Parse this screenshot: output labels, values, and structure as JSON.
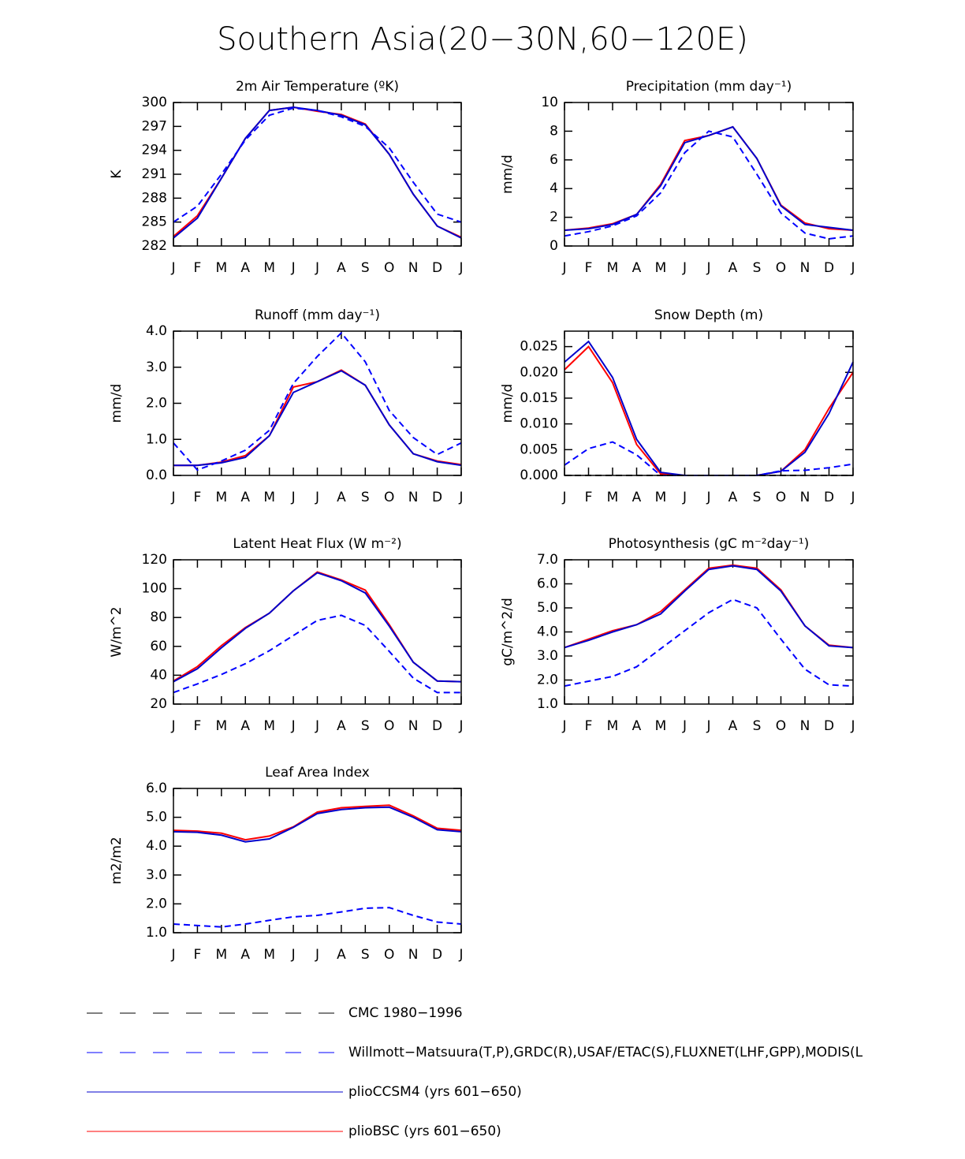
{
  "title": "Southern Asia(20−30N,60−120E)",
  "chart_data": [
    {
      "type": "line",
      "title": "2m Air Temperature (ºK)",
      "ylabel": "K",
      "categories": [
        "J",
        "F",
        "M",
        "A",
        "M",
        "J",
        "J",
        "A",
        "S",
        "O",
        "N",
        "D",
        "J"
      ],
      "ylim": [
        282,
        300
      ],
      "yticks": [
        282,
        285,
        288,
        291,
        294,
        297,
        300
      ],
      "series": [
        {
          "name": "Willmott−Matsuura(T,P),GRDC(R),USAF/ETAC(S),FLUXNET(LHF,GPP),MODIS(L",
          "color": "#0000ff",
          "dash": true,
          "values": [
            285,
            287,
            291,
            295.3,
            298.4,
            299.3,
            299,
            298.2,
            297,
            294.3,
            290,
            286,
            285
          ]
        },
        {
          "name": "plioCCSM4 (yrs 601−650)",
          "color": "#0000cc",
          "dash": false,
          "values": [
            283,
            285.5,
            290.5,
            295.5,
            299,
            299.4,
            299,
            298.4,
            297.2,
            293.5,
            288.5,
            284.5,
            283
          ]
        },
        {
          "name": "plioBSC (yrs 601−650)",
          "color": "#ff0000",
          "dash": false,
          "values": [
            283.2,
            285.8,
            290.5,
            295.5,
            299,
            299.4,
            298.9,
            298.5,
            297.3,
            293.5,
            288.5,
            284.5,
            283.1
          ]
        }
      ]
    },
    {
      "type": "line",
      "title": "Precipitation (mm day⁻¹)",
      "ylabel": "mm/d",
      "categories": [
        "J",
        "F",
        "M",
        "A",
        "M",
        "J",
        "J",
        "A",
        "S",
        "O",
        "N",
        "D",
        "J"
      ],
      "ylim": [
        0,
        10
      ],
      "yticks": [
        0,
        2,
        4,
        6,
        8,
        10
      ],
      "series": [
        {
          "name": "Willmott−Matsuura(T,P),GRDC(R),USAF/ETAC(S),FLUXNET(LHF,GPP),MODIS(L",
          "color": "#0000ff",
          "dash": true,
          "values": [
            0.7,
            1.0,
            1.4,
            2.1,
            3.7,
            6.5,
            8.0,
            7.6,
            5.0,
            2.3,
            0.9,
            0.5,
            0.7
          ]
        },
        {
          "name": "plioCCSM4 (yrs 601−650)",
          "color": "#0000cc",
          "dash": false,
          "values": [
            1.1,
            1.2,
            1.5,
            2.2,
            4.2,
            7.2,
            7.7,
            8.3,
            6.1,
            2.8,
            1.5,
            1.3,
            1.1
          ]
        },
        {
          "name": "plioBSC (yrs 601−650)",
          "color": "#ff0000",
          "dash": false,
          "values": [
            1.1,
            1.25,
            1.55,
            2.2,
            4.3,
            7.35,
            7.7,
            8.3,
            6.1,
            2.85,
            1.6,
            1.2,
            1.1
          ]
        }
      ]
    },
    {
      "type": "line",
      "title": "Runoff (mm day⁻¹)",
      "ylabel": "mm/d",
      "categories": [
        "J",
        "F",
        "M",
        "A",
        "M",
        "J",
        "J",
        "A",
        "S",
        "O",
        "N",
        "D",
        "J"
      ],
      "ylim": [
        0,
        4
      ],
      "yticks": [
        {
          "value": 0,
          "label": "0.0"
        },
        {
          "value": 1,
          "label": "1.0"
        },
        {
          "value": 2,
          "label": "2.0"
        },
        {
          "value": 3,
          "label": "3.0"
        },
        {
          "value": 4,
          "label": "4.0"
        }
      ],
      "series": [
        {
          "name": "Willmott−Matsuura(T,P),GRDC(R),USAF/ETAC(S),FLUXNET(LHF,GPP),MODIS(L",
          "color": "#0000ff",
          "dash": true,
          "values": [
            0.9,
            0.15,
            0.4,
            0.7,
            1.25,
            2.55,
            3.3,
            3.95,
            3.15,
            1.8,
            1.05,
            0.58,
            0.9
          ]
        },
        {
          "name": "plioCCSM4 (yrs 601−650)",
          "color": "#0000cc",
          "dash": false,
          "values": [
            0.28,
            0.28,
            0.35,
            0.5,
            1.1,
            2.3,
            2.6,
            2.9,
            2.5,
            1.4,
            0.6,
            0.38,
            0.28
          ]
        },
        {
          "name": "plioBSC (yrs 601−650)",
          "color": "#ff0000",
          "dash": false,
          "values": [
            0.28,
            0.28,
            0.37,
            0.55,
            1.1,
            2.45,
            2.6,
            2.92,
            2.5,
            1.4,
            0.6,
            0.4,
            0.3
          ]
        }
      ]
    },
    {
      "type": "line",
      "title": "Snow Depth (m)",
      "ylabel": "mm/d",
      "categories": [
        "J",
        "F",
        "M",
        "A",
        "M",
        "J",
        "J",
        "A",
        "S",
        "O",
        "N",
        "D",
        "J"
      ],
      "ylim": [
        0,
        0.028
      ],
      "yticks": [
        {
          "value": 0,
          "label": "0.000"
        },
        {
          "value": 0.005,
          "label": "0.005"
        },
        {
          "value": 0.01,
          "label": "0.010"
        },
        {
          "value": 0.015,
          "label": "0.015"
        },
        {
          "value": 0.02,
          "label": "0.020"
        },
        {
          "value": 0.025,
          "label": "0.025"
        }
      ],
      "series": [
        {
          "name": "CMC 1980−1996",
          "color": "#000000",
          "dash": true,
          "values": [
            0,
            0,
            0,
            0,
            0,
            0,
            0,
            0,
            0,
            0,
            0,
            0,
            0
          ]
        },
        {
          "name": "Willmott−Matsuura(T,P),GRDC(R),USAF/ETAC(S),FLUXNET(LHF,GPP),MODIS(L",
          "color": "#0000ff",
          "dash": true,
          "values": [
            0.002,
            0.0052,
            0.0065,
            0.004,
            0,
            0,
            0,
            0,
            0,
            0.0009,
            0.001,
            0.0015,
            0.0022
          ]
        },
        {
          "name": "plioCCSM4 (yrs 601−650)",
          "color": "#0000cc",
          "dash": false,
          "values": [
            0.022,
            0.026,
            0.019,
            0.007,
            0.0006,
            0,
            0,
            0,
            0,
            0.0008,
            0.0045,
            0.012,
            0.022
          ]
        },
        {
          "name": "plioBSC (yrs 601−650)",
          "color": "#ff0000",
          "dash": false,
          "values": [
            0.0205,
            0.025,
            0.018,
            0.006,
            0.0003,
            0,
            0,
            0,
            0,
            0.0008,
            0.005,
            0.013,
            0.02
          ]
        }
      ]
    },
    {
      "type": "line",
      "title": "Latent Heat Flux (W m⁻²)",
      "ylabel": "W/m^2",
      "categories": [
        "J",
        "F",
        "M",
        "A",
        "M",
        "J",
        "J",
        "A",
        "S",
        "O",
        "N",
        "D",
        "J"
      ],
      "ylim": [
        20,
        120
      ],
      "yticks": [
        20,
        40,
        60,
        80,
        100,
        120
      ],
      "series": [
        {
          "name": "Willmott−Matsuura(T,P),GRDC(R),USAF/ETAC(S),FLUXNET(LHF,GPP),MODIS(L",
          "color": "#0000ff",
          "dash": true,
          "values": [
            28,
            34,
            40.5,
            48,
            57,
            67.5,
            78,
            81.5,
            74.5,
            56.5,
            38,
            28,
            28
          ]
        },
        {
          "name": "plioCCSM4 (yrs 601−650)",
          "color": "#0000cc",
          "dash": false,
          "values": [
            35.5,
            44.5,
            59,
            72.5,
            83,
            98.5,
            111,
            105.5,
            97,
            74,
            49,
            36,
            35.5
          ]
        },
        {
          "name": "plioBSC (yrs 601−650)",
          "color": "#ff0000",
          "dash": false,
          "values": [
            36,
            46,
            60.5,
            73,
            83,
            98.5,
            111.5,
            106,
            99,
            75,
            49,
            36,
            35.5
          ]
        }
      ]
    },
    {
      "type": "line",
      "title": "Photosynthesis (gC m⁻²day⁻¹)",
      "ylabel": "gC/m^2/d",
      "categories": [
        "J",
        "F",
        "M",
        "A",
        "M",
        "J",
        "J",
        "A",
        "S",
        "O",
        "N",
        "D",
        "J"
      ],
      "ylim": [
        1,
        7
      ],
      "yticks": [
        {
          "value": 1,
          "label": "1.0"
        },
        {
          "value": 2,
          "label": "2.0"
        },
        {
          "value": 3,
          "label": "3.0"
        },
        {
          "value": 4,
          "label": "4.0"
        },
        {
          "value": 5,
          "label": "5.0"
        },
        {
          "value": 6,
          "label": "6.0"
        },
        {
          "value": 7,
          "label": "7.0"
        }
      ],
      "series": [
        {
          "name": "Willmott−Matsuura(T,P),GRDC(R),USAF/ETAC(S),FLUXNET(LHF,GPP),MODIS(L",
          "color": "#0000ff",
          "dash": true,
          "values": [
            1.75,
            1.95,
            2.15,
            2.55,
            3.3,
            4.05,
            4.8,
            5.35,
            5.0,
            3.7,
            2.45,
            1.8,
            1.75
          ]
        },
        {
          "name": "plioCCSM4 (yrs 601−650)",
          "color": "#0000cc",
          "dash": false,
          "values": [
            3.35,
            3.65,
            4.0,
            4.3,
            4.75,
            5.7,
            6.6,
            6.75,
            6.6,
            5.7,
            4.25,
            3.42,
            3.35
          ]
        },
        {
          "name": "plioBSC (yrs 601−650)",
          "color": "#ff0000",
          "dash": false,
          "values": [
            3.35,
            3.7,
            4.05,
            4.3,
            4.85,
            5.75,
            6.65,
            6.78,
            6.65,
            5.75,
            4.25,
            3.45,
            3.35
          ]
        }
      ]
    },
    {
      "type": "line",
      "title": "Leaf Area Index",
      "ylabel": "m2/m2",
      "categories": [
        "J",
        "F",
        "M",
        "A",
        "M",
        "J",
        "J",
        "A",
        "S",
        "O",
        "N",
        "D",
        "J"
      ],
      "ylim": [
        1,
        6
      ],
      "yticks": [
        {
          "value": 1,
          "label": "1.0"
        },
        {
          "value": 2,
          "label": "2.0"
        },
        {
          "value": 3,
          "label": "3.0"
        },
        {
          "value": 4,
          "label": "4.0"
        },
        {
          "value": 5,
          "label": "5.0"
        },
        {
          "value": 6,
          "label": "6.0"
        }
      ],
      "series": [
        {
          "name": "Willmott−Matsuura(T,P),GRDC(R),USAF/ETAC(S),FLUXNET(LHF,GPP),MODIS(L",
          "color": "#0000ff",
          "dash": true,
          "values": [
            1.3,
            1.25,
            1.2,
            1.3,
            1.43,
            1.55,
            1.6,
            1.72,
            1.85,
            1.87,
            1.6,
            1.37,
            1.3
          ]
        },
        {
          "name": "plioCCSM4 (yrs 601−650)",
          "color": "#0000cc",
          "dash": false,
          "values": [
            4.5,
            4.48,
            4.38,
            4.15,
            4.25,
            4.65,
            5.13,
            5.27,
            5.33,
            5.35,
            5.0,
            4.57,
            4.5
          ]
        },
        {
          "name": "plioBSC (yrs 601−650)",
          "color": "#ff0000",
          "dash": false,
          "values": [
            4.55,
            4.52,
            4.45,
            4.22,
            4.35,
            4.67,
            5.18,
            5.33,
            5.38,
            5.42,
            5.05,
            4.62,
            4.55
          ]
        }
      ]
    }
  ]
}
